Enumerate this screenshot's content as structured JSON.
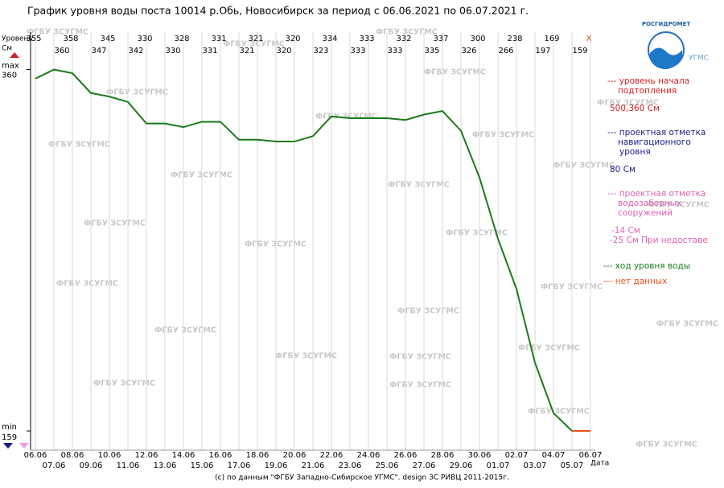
{
  "chart_data": {
    "type": "line",
    "title": "График уровня воды поста 10014 р.Обь, Новосибирск за период с 06.06.2021 по 06.07.2021 г.",
    "y_label": "Уровень",
    "y_unit": "См",
    "x_label": "Дата",
    "categories": [
      "06.06",
      "07.06",
      "08.06",
      "09.06",
      "10.06",
      "11.06",
      "12.06",
      "13.06",
      "14.06",
      "15.06",
      "16.06",
      "17.06",
      "18.06",
      "19.06",
      "20.06",
      "21.06",
      "22.06",
      "23.06",
      "24.06",
      "25.06",
      "26.06",
      "27.06",
      "28.06",
      "29.06",
      "30.06",
      "01.07",
      "02.07",
      "03.07",
      "04.07",
      "05.07",
      "06.07"
    ],
    "series": [
      {
        "name": "--- ход уровня воды",
        "color": "#1a7a1a",
        "values": [
          355,
          360,
          358,
          347,
          345,
          342,
          330,
          330,
          328,
          331,
          331,
          321,
          321,
          320,
          320,
          323,
          334,
          333,
          333,
          333,
          332,
          335,
          337,
          326,
          300,
          266,
          238,
          197,
          169,
          159,
          null
        ]
      }
    ],
    "missing_label": "X",
    "no_data_legend": {
      "name": "--- нет данных",
      "color": "#e8501a"
    },
    "ylim": [
      155,
      371
    ],
    "yticks": [
      {
        "value": 360,
        "label": "360"
      },
      {
        "value": 159,
        "label": "159"
      }
    ],
    "max_label": "max",
    "min_label": "min",
    "legend": [
      {
        "lines": [
          "--- уровень начала",
          "подтопления"
        ],
        "value": "500,360 См",
        "color": "#d02020"
      },
      {
        "lines": [
          "--- проектная отметка",
          "навигационного",
          "уровня"
        ],
        "value": "80 См",
        "color": "#1a1a8c"
      },
      {
        "lines": [
          "--- проектная отметка",
          "водозаборных",
          "сооружений"
        ],
        "value": "-14 См",
        "value2": "-25 См При недоставе",
        "color": "#e060b0"
      }
    ],
    "watermark": "ФГБУ ЗСУГМС",
    "logo_text": "РОСГИДРОМЕТ",
    "logo_sub": "УГМС",
    "footer": "(c) по данным \"ФГБУ Западно-Сибирское УГМС\". design ЗС РИВЦ 2011-2015г."
  }
}
